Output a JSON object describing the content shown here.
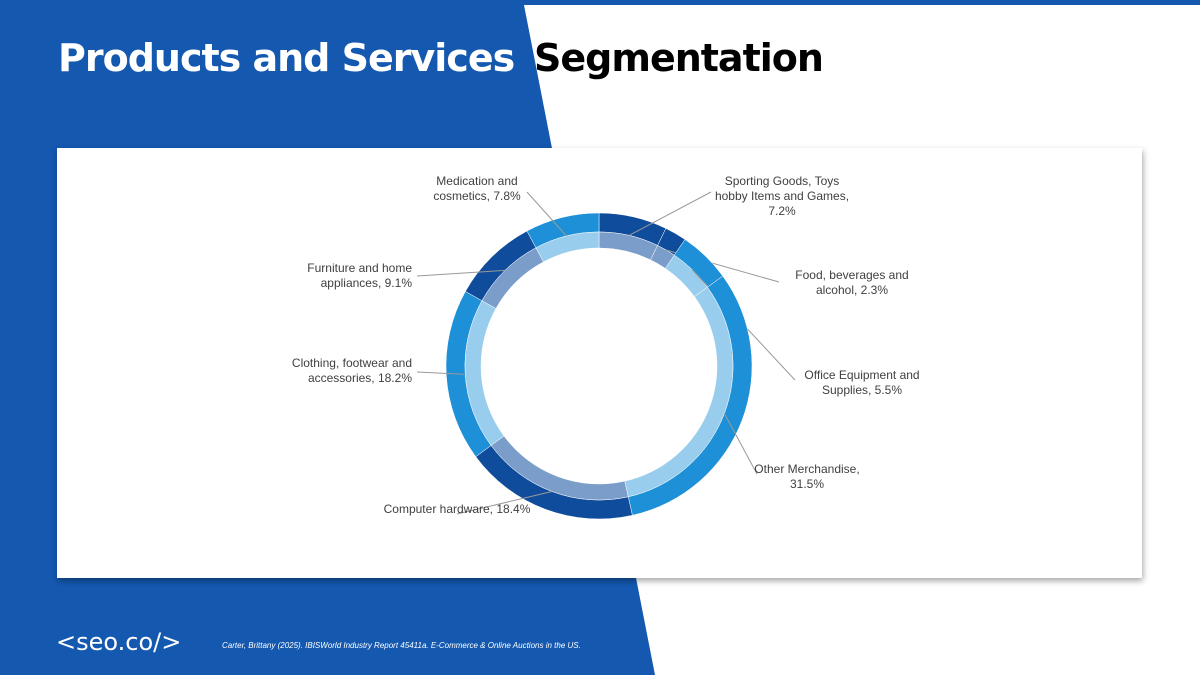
{
  "chart_data": {
    "type": "donut",
    "title": [
      "Products and Services",
      "Segmentation"
    ],
    "value_labels": [
      "Sporting Goods, Toys hobby Items and Games, 7.2%",
      "Food, beverages and alcohol, 2.3%",
      "Office Equipment and Supplies, 5.5%",
      "Other Merchandise, 31.5%",
      "Computer hardware, 18.4%",
      "Clothing, footwear and accessories, 18.2%",
      "Furniture and home appliances, 9.1%",
      "Medication and cosmetics, 7.8%"
    ],
    "values": [
      7.2,
      2.3,
      5.5,
      31.5,
      18.4,
      18.2,
      9.1,
      7.8
    ],
    "colors": [
      "#0f4c9c",
      "#0f4c9c",
      "#1d90d8",
      "#1d90d8",
      "#0f4c9c",
      "#1d90d8",
      "#0f4c9c",
      "#1d90d8"
    ]
  },
  "footer": {
    "logo": "<seo.co/>",
    "source": "Carter, Brittany (2025). IBISWorld Industry Report 45411a. E-Commerce & Online Auctions in the US."
  }
}
